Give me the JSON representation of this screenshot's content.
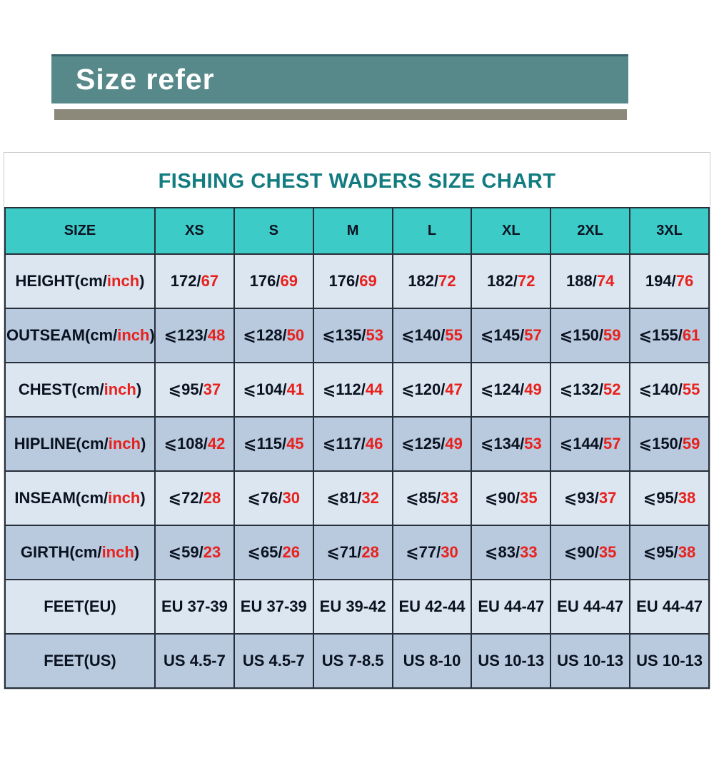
{
  "banner": {
    "title": "Size refer"
  },
  "colors": {
    "banner_bg": "#57898b",
    "divider": "#8c897b",
    "header_bg": "#3dcbc8",
    "row_light": "#dce6f1",
    "row_dark": "#b9c9de",
    "accent_red": "#e8211c",
    "title_teal": "#127c80",
    "grid_line": "#272f3a",
    "dark_text": "#0a1220"
  },
  "table": {
    "title": "FISHING CHEST WADERS SIZE CHART",
    "header": [
      "SIZE",
      "XS",
      "S",
      "M",
      "L",
      "XL",
      "2XL",
      "3XL"
    ],
    "rows": [
      {
        "label": {
          "black": "HEIGHT(cm/",
          "red": "inch",
          "end": ")"
        },
        "cells": [
          {
            "black": "172/",
            "red": "67"
          },
          {
            "black": "176/",
            "red": "69"
          },
          {
            "black": "176/",
            "red": "69"
          },
          {
            "black": "182/",
            "red": "72"
          },
          {
            "black": "182/",
            "red": "72"
          },
          {
            "black": "188/",
            "red": "74"
          },
          {
            "black": "194/",
            "red": "76"
          }
        ]
      },
      {
        "label": {
          "black": "OUTSEAM(cm/",
          "red": "inch",
          "end": ")"
        },
        "cells": [
          {
            "black": "⩽123/",
            "red": "48"
          },
          {
            "black": "⩽128/",
            "red": "50"
          },
          {
            "black": "⩽135/",
            "red": "53"
          },
          {
            "black": "⩽140/",
            "red": "55"
          },
          {
            "black": "⩽145/",
            "red": "57"
          },
          {
            "black": "⩽150/",
            "red": "59"
          },
          {
            "black": "⩽155/",
            "red": "61"
          }
        ]
      },
      {
        "label": {
          "black": "CHEST(cm/",
          "red": "inch",
          "end": ")"
        },
        "cells": [
          {
            "black": "⩽95/",
            "red": "37"
          },
          {
            "black": "⩽104/",
            "red": "41"
          },
          {
            "black": "⩽112/",
            "red": "44"
          },
          {
            "black": "⩽120/",
            "red": "47"
          },
          {
            "black": "⩽124/",
            "red": "49"
          },
          {
            "black": "⩽132/",
            "red": "52"
          },
          {
            "black": "⩽140/",
            "red": "55"
          }
        ]
      },
      {
        "label": {
          "black": "HIPLINE(cm/",
          "red": "inch",
          "end": ")"
        },
        "cells": [
          {
            "black": "⩽108/",
            "red": "42"
          },
          {
            "black": "⩽115/",
            "red": "45"
          },
          {
            "black": "⩽117/",
            "red": "46"
          },
          {
            "black": "⩽125/",
            "red": "49"
          },
          {
            "black": "⩽134/",
            "red": "53"
          },
          {
            "black": "⩽144/",
            "red": "57"
          },
          {
            "black": "⩽150/",
            "red": "59"
          }
        ]
      },
      {
        "label": {
          "black": "INSEAM(cm/",
          "red": "inch",
          "end": ")"
        },
        "cells": [
          {
            "black": "⩽72/",
            "red": "28"
          },
          {
            "black": "⩽76/",
            "red": "30"
          },
          {
            "black": "⩽81/",
            "red": "32"
          },
          {
            "black": "⩽85/",
            "red": "33"
          },
          {
            "black": "⩽90/",
            "red": "35"
          },
          {
            "black": "⩽93/",
            "red": "37"
          },
          {
            "black": "⩽95/",
            "red": "38"
          }
        ]
      },
      {
        "label": {
          "black": "GIRTH(cm/",
          "red": "inch",
          "end": ")"
        },
        "cells": [
          {
            "black": "⩽59/",
            "red": "23"
          },
          {
            "black": "⩽65/",
            "red": "26"
          },
          {
            "black": "⩽71/",
            "red": "28"
          },
          {
            "black": "⩽77/",
            "red": "30"
          },
          {
            "black": "⩽83/",
            "red": "33"
          },
          {
            "black": "⩽90/",
            "red": "35"
          },
          {
            "black": "⩽95/",
            "red": "38"
          }
        ]
      },
      {
        "label": {
          "black": "FEET(EU)",
          "red": "",
          "end": ""
        },
        "cells": [
          {
            "black": "EU 37-39",
            "red": ""
          },
          {
            "black": "EU 37-39",
            "red": ""
          },
          {
            "black": "EU 39-42",
            "red": ""
          },
          {
            "black": "EU 42-44",
            "red": ""
          },
          {
            "black": "EU 44-47",
            "red": ""
          },
          {
            "black": "EU 44-47",
            "red": ""
          },
          {
            "black": "EU 44-47",
            "red": ""
          }
        ]
      },
      {
        "label": {
          "black": "FEET(US)",
          "red": "",
          "end": ""
        },
        "cells": [
          {
            "black": "US 4.5-7",
            "red": ""
          },
          {
            "black": "US 4.5-7",
            "red": ""
          },
          {
            "black": "US 7-8.5",
            "red": ""
          },
          {
            "black": "US 8-10",
            "red": ""
          },
          {
            "black": "US 10-13",
            "red": ""
          },
          {
            "black": "US 10-13",
            "red": ""
          },
          {
            "black": "US 10-13",
            "red": ""
          }
        ]
      }
    ]
  },
  "chart_data": {
    "type": "table",
    "title": "FISHING CHEST WADERS SIZE CHART",
    "columns": [
      "SIZE",
      "XS",
      "S",
      "M",
      "L",
      "XL",
      "2XL",
      "3XL"
    ],
    "rows": [
      [
        "HEIGHT(cm/inch)",
        "172/67",
        "176/69",
        "176/69",
        "182/72",
        "182/72",
        "188/74",
        "194/76"
      ],
      [
        "OUTSEAM(cm/inch)",
        "⩽123/48",
        "⩽128/50",
        "⩽135/53",
        "⩽140/55",
        "⩽145/57",
        "⩽150/59",
        "⩽155/61"
      ],
      [
        "CHEST(cm/inch)",
        "⩽95/37",
        "⩽104/41",
        "⩽112/44",
        "⩽120/47",
        "⩽124/49",
        "⩽132/52",
        "⩽140/55"
      ],
      [
        "HIPLINE(cm/inch)",
        "⩽108/42",
        "⩽115/45",
        "⩽117/46",
        "⩽125/49",
        "⩽134/53",
        "⩽144/57",
        "⩽150/59"
      ],
      [
        "INSEAM(cm/inch)",
        "⩽72/28",
        "⩽76/30",
        "⩽81/32",
        "⩽85/33",
        "⩽90/35",
        "⩽93/37",
        "⩽95/38"
      ],
      [
        "GIRTH(cm/inch)",
        "⩽59/23",
        "⩽65/26",
        "⩽71/28",
        "⩽77/30",
        "⩽83/33",
        "⩽90/35",
        "⩽95/38"
      ],
      [
        "FEET(EU)",
        "EU 37-39",
        "EU 37-39",
        "EU 39-42",
        "EU 42-44",
        "EU 44-47",
        "EU 44-47",
        "EU 44-47"
      ],
      [
        "FEET(US)",
        "US 4.5-7",
        "US 4.5-7",
        "US 7-8.5",
        "US 8-10",
        "US 10-13",
        "US 10-13",
        "US 10-13"
      ]
    ]
  }
}
